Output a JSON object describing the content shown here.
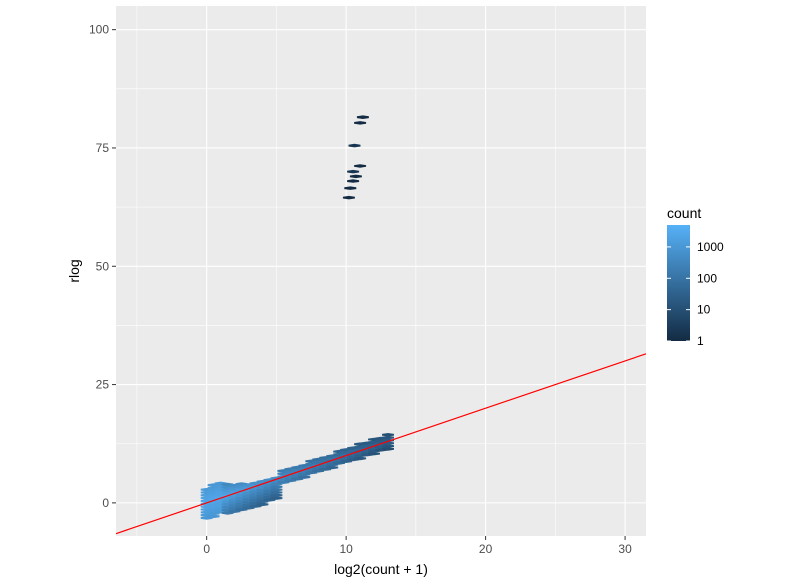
{
  "chart_data": {
    "type": "hexbin",
    "xlabel": "log2(count + 1)",
    "ylabel": "rlog",
    "xlim": [
      -6.5,
      31.5
    ],
    "ylim": [
      -7,
      105
    ],
    "x_ticks": [
      0,
      10,
      20,
      30
    ],
    "y_ticks": [
      0,
      25,
      50,
      75,
      100
    ],
    "grid": true,
    "panel_background": "#ebebeb",
    "reference_line": {
      "slope": 1,
      "intercept": 0,
      "color": "#ff0000"
    },
    "legend": {
      "title": "count",
      "position": "right",
      "scale": "log10",
      "breaks": [
        1,
        10,
        100,
        1000
      ],
      "labels": [
        "1",
        "10",
        "100",
        "1000"
      ],
      "range": [
        1,
        5000
      ],
      "low_color": "#132b43",
      "high_color": "#56b1f7"
    },
    "outlier_points": [
      {
        "x": 11.2,
        "y": 81.5,
        "count": 1
      },
      {
        "x": 11.0,
        "y": 80.3,
        "count": 1
      },
      {
        "x": 10.6,
        "y": 75.5,
        "count": 2
      },
      {
        "x": 11.0,
        "y": 71.2,
        "count": 1
      },
      {
        "x": 10.5,
        "y": 70.0,
        "count": 2
      },
      {
        "x": 10.7,
        "y": 69.0,
        "count": 1
      },
      {
        "x": 10.5,
        "y": 68.0,
        "count": 1
      },
      {
        "x": 10.3,
        "y": 66.5,
        "count": 1
      },
      {
        "x": 10.2,
        "y": 64.5,
        "count": 1
      }
    ]
  }
}
